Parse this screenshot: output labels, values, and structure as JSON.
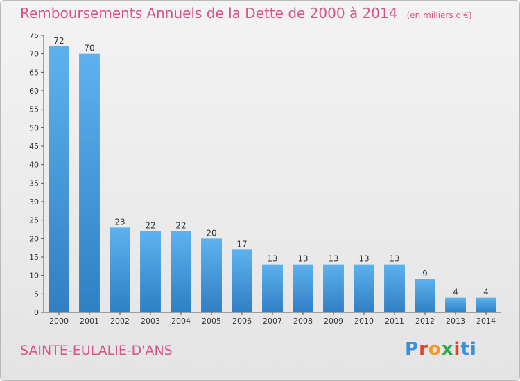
{
  "title": "Remboursements Annuels de la Dette de 2000 à 2014",
  "unit_note": "(en milliers d'€)",
  "commune": "SAINTE-EULALIE-D'ANS",
  "logo": {
    "text": "Proxiti",
    "letters": [
      "P",
      "r",
      "o",
      "x",
      "i",
      "ti"
    ]
  },
  "chart_data": {
    "type": "bar",
    "title": "Remboursements Annuels de la Dette de 2000 à 2014",
    "xlabel": "",
    "ylabel": "",
    "categories": [
      "2000",
      "2001",
      "2002",
      "2003",
      "2004",
      "2005",
      "2006",
      "2007",
      "2008",
      "2009",
      "2010",
      "2011",
      "2012",
      "2013",
      "2014"
    ],
    "values": [
      72,
      70,
      23,
      22,
      22,
      20,
      17,
      13,
      13,
      13,
      13,
      13,
      9,
      4,
      4
    ],
    "ylim": [
      0,
      75
    ],
    "yticks": [
      0,
      5,
      10,
      15,
      20,
      25,
      30,
      35,
      40,
      45,
      50,
      55,
      60,
      65,
      70,
      75
    ],
    "grid": false,
    "bar_color": "#4a9ee0",
    "data_labels": true
  }
}
